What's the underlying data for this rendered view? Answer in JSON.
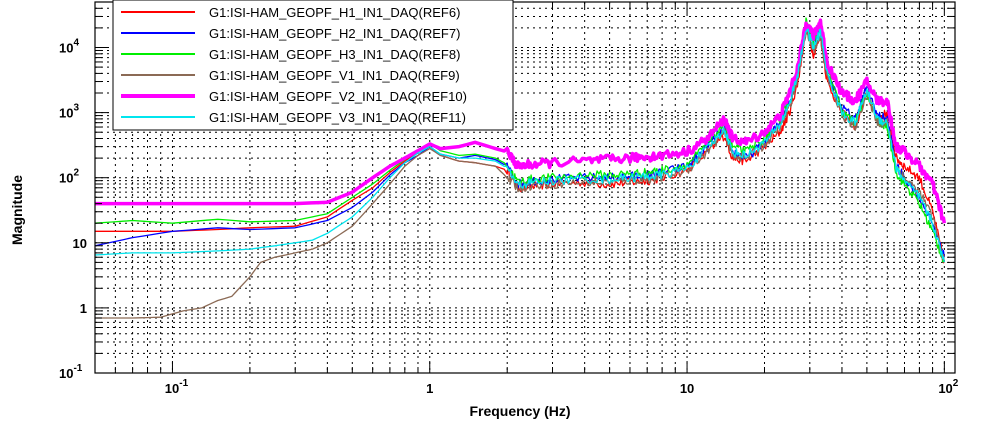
{
  "chart_data": {
    "type": "line",
    "title": "",
    "xlabel": "Frequency (Hz)",
    "ylabel": "Magnitude",
    "xscale": "log",
    "yscale": "log",
    "xlim": [
      0.05,
      110
    ],
    "ylim": [
      0.1,
      50000
    ],
    "grid": true,
    "legend_position": "top-left",
    "x_ticks": [
      {
        "value": 0.1,
        "base": "10",
        "exp": "-1"
      },
      {
        "value": 1,
        "base": "1",
        "exp": ""
      },
      {
        "value": 10,
        "base": "10",
        "exp": ""
      },
      {
        "value": 100,
        "base": "10",
        "exp": "2"
      }
    ],
    "y_ticks": [
      {
        "value": 0.1,
        "base": "10",
        "exp": "-1"
      },
      {
        "value": 1,
        "base": "1",
        "exp": ""
      },
      {
        "value": 10,
        "base": "10",
        "exp": ""
      },
      {
        "value": 100,
        "base": "10",
        "exp": "2"
      },
      {
        "value": 1000,
        "base": "10",
        "exp": "3"
      },
      {
        "value": 10000,
        "base": "10",
        "exp": "4"
      }
    ],
    "series": [
      {
        "name": "G1:ISI-HAM_GEOPF_H1_IN1_DAQ(REF6)",
        "color": "#ff0000",
        "width": 1.3,
        "points": [
          [
            0.05,
            15
          ],
          [
            0.07,
            15
          ],
          [
            0.1,
            15
          ],
          [
            0.15,
            16
          ],
          [
            0.2,
            17
          ],
          [
            0.3,
            18
          ],
          [
            0.4,
            25
          ],
          [
            0.5,
            45
          ],
          [
            0.6,
            70
          ],
          [
            0.7,
            120
          ],
          [
            0.8,
            180
          ],
          [
            0.9,
            250
          ],
          [
            1.0,
            300
          ],
          [
            1.1,
            220
          ],
          [
            1.3,
            180
          ],
          [
            1.5,
            170
          ],
          [
            1.8,
            150
          ],
          [
            2.0,
            130
          ],
          [
            2.2,
            70
          ],
          [
            2.5,
            75
          ],
          [
            3,
            80
          ],
          [
            4,
            85
          ],
          [
            5,
            80
          ],
          [
            6,
            85
          ],
          [
            7,
            90
          ],
          [
            8,
            100
          ],
          [
            10,
            130
          ],
          [
            12,
            250
          ],
          [
            14,
            450
          ],
          [
            15,
            200
          ],
          [
            17,
            180
          ],
          [
            20,
            300
          ],
          [
            23,
            500
          ],
          [
            25,
            1000
          ],
          [
            27,
            3000
          ],
          [
            29,
            20000
          ],
          [
            31,
            8000
          ],
          [
            33,
            15000
          ],
          [
            35,
            3000
          ],
          [
            40,
            1000
          ],
          [
            45,
            600
          ],
          [
            50,
            2000
          ],
          [
            55,
            800
          ],
          [
            60,
            1000
          ],
          [
            65,
            200
          ],
          [
            70,
            150
          ],
          [
            80,
            100
          ],
          [
            90,
            30
          ],
          [
            100,
            5
          ]
        ]
      },
      {
        "name": "G1:ISI-HAM_GEOPF_H2_IN1_DAQ(REF7)",
        "color": "#0000ff",
        "width": 1.3,
        "points": [
          [
            0.05,
            9
          ],
          [
            0.07,
            12
          ],
          [
            0.1,
            15
          ],
          [
            0.15,
            17
          ],
          [
            0.2,
            16
          ],
          [
            0.3,
            17
          ],
          [
            0.4,
            22
          ],
          [
            0.5,
            35
          ],
          [
            0.6,
            60
          ],
          [
            0.7,
            110
          ],
          [
            0.8,
            170
          ],
          [
            0.9,
            220
          ],
          [
            1.0,
            300
          ],
          [
            1.1,
            230
          ],
          [
            1.3,
            200
          ],
          [
            1.5,
            220
          ],
          [
            1.8,
            190
          ],
          [
            2.0,
            150
          ],
          [
            2.2,
            80
          ],
          [
            2.5,
            90
          ],
          [
            3,
            95
          ],
          [
            4,
            100
          ],
          [
            5,
            100
          ],
          [
            6,
            105
          ],
          [
            7,
            110
          ],
          [
            8,
            120
          ],
          [
            10,
            150
          ],
          [
            12,
            300
          ],
          [
            14,
            600
          ],
          [
            15,
            250
          ],
          [
            17,
            200
          ],
          [
            20,
            350
          ],
          [
            23,
            700
          ],
          [
            25,
            1500
          ],
          [
            27,
            4000
          ],
          [
            29,
            22000
          ],
          [
            31,
            10000
          ],
          [
            33,
            20000
          ],
          [
            35,
            4000
          ],
          [
            40,
            1200
          ],
          [
            45,
            800
          ],
          [
            50,
            2500
          ],
          [
            55,
            900
          ],
          [
            60,
            800
          ],
          [
            65,
            150
          ],
          [
            70,
            100
          ],
          [
            80,
            50
          ],
          [
            90,
            20
          ],
          [
            100,
            6
          ]
        ]
      },
      {
        "name": "G1:ISI-HAM_GEOPF_H3_IN1_DAQ(REF8)",
        "color": "#00ee00",
        "width": 1.3,
        "points": [
          [
            0.05,
            20
          ],
          [
            0.07,
            22
          ],
          [
            0.1,
            20
          ],
          [
            0.15,
            23
          ],
          [
            0.2,
            21
          ],
          [
            0.3,
            22
          ],
          [
            0.4,
            28
          ],
          [
            0.5,
            50
          ],
          [
            0.6,
            80
          ],
          [
            0.7,
            130
          ],
          [
            0.8,
            190
          ],
          [
            0.9,
            260
          ],
          [
            1.0,
            330
          ],
          [
            1.1,
            260
          ],
          [
            1.3,
            220
          ],
          [
            1.5,
            230
          ],
          [
            1.8,
            200
          ],
          [
            2.0,
            160
          ],
          [
            2.2,
            85
          ],
          [
            2.5,
            95
          ],
          [
            3,
            100
          ],
          [
            4,
            110
          ],
          [
            5,
            110
          ],
          [
            6,
            115
          ],
          [
            7,
            120
          ],
          [
            8,
            130
          ],
          [
            10,
            160
          ],
          [
            12,
            320
          ],
          [
            14,
            700
          ],
          [
            15,
            300
          ],
          [
            17,
            250
          ],
          [
            20,
            400
          ],
          [
            23,
            800
          ],
          [
            25,
            1800
          ],
          [
            27,
            5000
          ],
          [
            29,
            25000
          ],
          [
            31,
            12000
          ],
          [
            33,
            22000
          ],
          [
            35,
            5000
          ],
          [
            40,
            1000
          ],
          [
            45,
            700
          ],
          [
            50,
            2000
          ],
          [
            55,
            700
          ],
          [
            60,
            600
          ],
          [
            65,
            120
          ],
          [
            70,
            80
          ],
          [
            80,
            40
          ],
          [
            90,
            15
          ],
          [
            100,
            5
          ]
        ]
      },
      {
        "name": "G1:ISI-HAM_GEOPF_V1_IN1_DAQ(REF9)",
        "color": "#8b6a55",
        "width": 1.3,
        "points": [
          [
            0.05,
            0.7
          ],
          [
            0.07,
            0.7
          ],
          [
            0.09,
            0.72
          ],
          [
            0.11,
            0.9
          ],
          [
            0.13,
            1.0
          ],
          [
            0.15,
            1.3
          ],
          [
            0.17,
            1.5
          ],
          [
            0.2,
            3
          ],
          [
            0.22,
            5
          ],
          [
            0.25,
            6
          ],
          [
            0.3,
            7
          ],
          [
            0.35,
            8
          ],
          [
            0.4,
            10
          ],
          [
            0.5,
            18
          ],
          [
            0.6,
            40
          ],
          [
            0.7,
            80
          ],
          [
            0.8,
            150
          ],
          [
            0.9,
            220
          ],
          [
            1.0,
            280
          ],
          [
            1.1,
            220
          ],
          [
            1.3,
            180
          ],
          [
            1.5,
            170
          ],
          [
            1.8,
            150
          ],
          [
            2.0,
            100
          ],
          [
            2.2,
            70
          ],
          [
            2.5,
            75
          ],
          [
            3,
            80
          ],
          [
            4,
            85
          ],
          [
            5,
            85
          ],
          [
            6,
            90
          ],
          [
            7,
            95
          ],
          [
            8,
            100
          ],
          [
            10,
            130
          ],
          [
            12,
            250
          ],
          [
            14,
            500
          ],
          [
            15,
            220
          ],
          [
            17,
            200
          ],
          [
            20,
            320
          ],
          [
            23,
            600
          ],
          [
            25,
            1200
          ],
          [
            27,
            3500
          ],
          [
            29,
            18000
          ],
          [
            31,
            9000
          ],
          [
            33,
            15000
          ],
          [
            35,
            3500
          ],
          [
            40,
            900
          ],
          [
            45,
            600
          ],
          [
            50,
            2000
          ],
          [
            55,
            700
          ],
          [
            60,
            700
          ],
          [
            65,
            150
          ],
          [
            70,
            100
          ],
          [
            80,
            60
          ],
          [
            90,
            25
          ],
          [
            100,
            5
          ]
        ]
      },
      {
        "name": "G1:ISI-HAM_GEOPF_V2_IN1_DAQ(REF10)",
        "color": "#ff00ff",
        "width": 3.5,
        "points": [
          [
            0.05,
            40
          ],
          [
            0.07,
            40
          ],
          [
            0.1,
            40
          ],
          [
            0.15,
            40
          ],
          [
            0.2,
            40
          ],
          [
            0.3,
            40
          ],
          [
            0.4,
            42
          ],
          [
            0.5,
            60
          ],
          [
            0.6,
            100
          ],
          [
            0.7,
            150
          ],
          [
            0.8,
            200
          ],
          [
            0.9,
            260
          ],
          [
            1.0,
            330
          ],
          [
            1.1,
            280
          ],
          [
            1.3,
            300
          ],
          [
            1.5,
            350
          ],
          [
            1.8,
            280
          ],
          [
            2.0,
            250
          ],
          [
            2.2,
            150
          ],
          [
            2.5,
            160
          ],
          [
            3,
            170
          ],
          [
            4,
            180
          ],
          [
            5,
            190
          ],
          [
            6,
            200
          ],
          [
            7,
            210
          ],
          [
            8,
            220
          ],
          [
            10,
            250
          ],
          [
            12,
            400
          ],
          [
            14,
            800
          ],
          [
            15,
            400
          ],
          [
            17,
            350
          ],
          [
            20,
            500
          ],
          [
            23,
            900
          ],
          [
            25,
            2000
          ],
          [
            27,
            5000
          ],
          [
            29,
            25000
          ],
          [
            31,
            15000
          ],
          [
            33,
            25000
          ],
          [
            35,
            6000
          ],
          [
            40,
            2000
          ],
          [
            45,
            1500
          ],
          [
            50,
            3000
          ],
          [
            55,
            1500
          ],
          [
            60,
            1500
          ],
          [
            65,
            300
          ],
          [
            70,
            250
          ],
          [
            80,
            150
          ],
          [
            90,
            80
          ],
          [
            100,
            20
          ]
        ]
      },
      {
        "name": "G1:ISI-HAM_GEOPF_V3_IN1_DAQ(REF11)",
        "color": "#00e5ee",
        "width": 1.3,
        "points": [
          [
            0.05,
            6.5
          ],
          [
            0.07,
            7
          ],
          [
            0.1,
            7
          ],
          [
            0.15,
            7.5
          ],
          [
            0.2,
            8
          ],
          [
            0.25,
            9
          ],
          [
            0.3,
            10
          ],
          [
            0.35,
            11
          ],
          [
            0.4,
            14
          ],
          [
            0.5,
            25
          ],
          [
            0.6,
            50
          ],
          [
            0.7,
            100
          ],
          [
            0.8,
            170
          ],
          [
            0.9,
            240
          ],
          [
            1.0,
            300
          ],
          [
            1.1,
            230
          ],
          [
            1.3,
            200
          ],
          [
            1.5,
            200
          ],
          [
            1.8,
            180
          ],
          [
            2.0,
            140
          ],
          [
            2.2,
            75
          ],
          [
            2.5,
            85
          ],
          [
            3,
            90
          ],
          [
            4,
            95
          ],
          [
            5,
            95
          ],
          [
            6,
            100
          ],
          [
            7,
            105
          ],
          [
            8,
            110
          ],
          [
            10,
            140
          ],
          [
            12,
            280
          ],
          [
            14,
            550
          ],
          [
            15,
            250
          ],
          [
            17,
            220
          ],
          [
            20,
            350
          ],
          [
            23,
            650
          ],
          [
            25,
            1400
          ],
          [
            27,
            4000
          ],
          [
            29,
            20000
          ],
          [
            31,
            10000
          ],
          [
            33,
            18000
          ],
          [
            35,
            4000
          ],
          [
            40,
            1000
          ],
          [
            45,
            700
          ],
          [
            50,
            2200
          ],
          [
            55,
            800
          ],
          [
            60,
            700
          ],
          [
            65,
            140
          ],
          [
            70,
            90
          ],
          [
            80,
            50
          ],
          [
            90,
            20
          ],
          [
            100,
            5
          ]
        ]
      }
    ]
  }
}
